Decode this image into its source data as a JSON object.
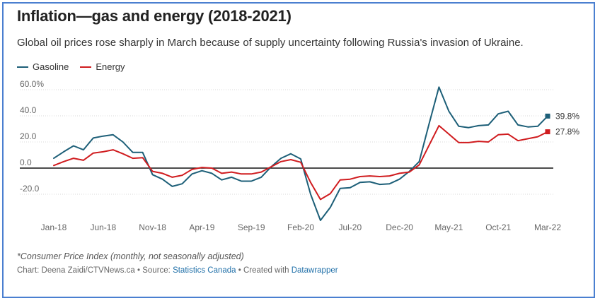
{
  "title": "Inflation—gas and energy (2018-2021)",
  "subtitle": "Global oil prices rose sharply in March because of supply uncertainty following Russia's invasion of Ukraine.",
  "note": "*Consumer Price Index (monthly, not seasonally adjusted)",
  "credit": {
    "prefix": "Chart: Deena Zaidi/CTVNews.ca • Source: ",
    "source_link": "Statistics Canada",
    "middle": " • Created with ",
    "tool_link": "Datawrapper"
  },
  "colors": {
    "gasoline": "#1d5f78",
    "energy": "#d01c1f"
  },
  "chart_data": {
    "type": "line",
    "title": "Inflation—gas and energy (2018-2021)",
    "ylim": [
      -30,
      62
    ],
    "yticks": [
      {
        "value": 60,
        "label": "60.0%"
      },
      {
        "value": 40,
        "label": "40.0"
      },
      {
        "value": 20,
        "label": "20.0"
      },
      {
        "value": 0,
        "label": "0.0"
      },
      {
        "value": -20,
        "label": "-20.0"
      }
    ],
    "xticks": [
      {
        "index": 0,
        "label": "Jan-18"
      },
      {
        "index": 5,
        "label": "Jun-18"
      },
      {
        "index": 10,
        "label": "Nov-18"
      },
      {
        "index": 15,
        "label": "Apr-19"
      },
      {
        "index": 20,
        "label": "Sep-19"
      },
      {
        "index": 25,
        "label": "Feb-20"
      },
      {
        "index": 30,
        "label": "Jul-20"
      },
      {
        "index": 35,
        "label": "Dec-20"
      },
      {
        "index": 40,
        "label": "May-21"
      },
      {
        "index": 45,
        "label": "Oct-21"
      },
      {
        "index": 50,
        "label": "Mar-22"
      }
    ],
    "series": [
      {
        "name": "Gasoline",
        "end_label": "39.8%",
        "values": [
          7.5,
          12.5,
          17,
          14,
          23,
          24.5,
          25.5,
          20,
          12,
          12,
          -5,
          -8.5,
          -14,
          -12,
          -4.5,
          -2,
          -4,
          -9,
          -7,
          -10,
          -10,
          -7,
          1,
          7.5,
          11,
          7,
          -20,
          -40,
          -30,
          -15.5,
          -15,
          -11,
          -10.5,
          -12.5,
          -12,
          -8.5,
          -2.5,
          5,
          34,
          62,
          43.5,
          32,
          31,
          32.5,
          33,
          41.5,
          43.5,
          33,
          31.5,
          32,
          39.8
        ]
      },
      {
        "name": "Energy",
        "end_label": "27.8%",
        "values": [
          2,
          5,
          7.5,
          6,
          11.5,
          12.5,
          14,
          11,
          7.5,
          8,
          -2.5,
          -4,
          -7,
          -5.5,
          -1,
          0.5,
          0,
          -4,
          -3,
          -4.5,
          -4.5,
          -3,
          1,
          5,
          6.5,
          4.5,
          -11,
          -24,
          -19.5,
          -9,
          -8.5,
          -6.5,
          -6,
          -6.5,
          -6,
          -4,
          -3,
          2.5,
          17.5,
          32.5,
          26,
          19.5,
          19.5,
          20.5,
          20,
          25.5,
          26,
          21,
          22.5,
          24,
          27.8
        ]
      }
    ]
  }
}
